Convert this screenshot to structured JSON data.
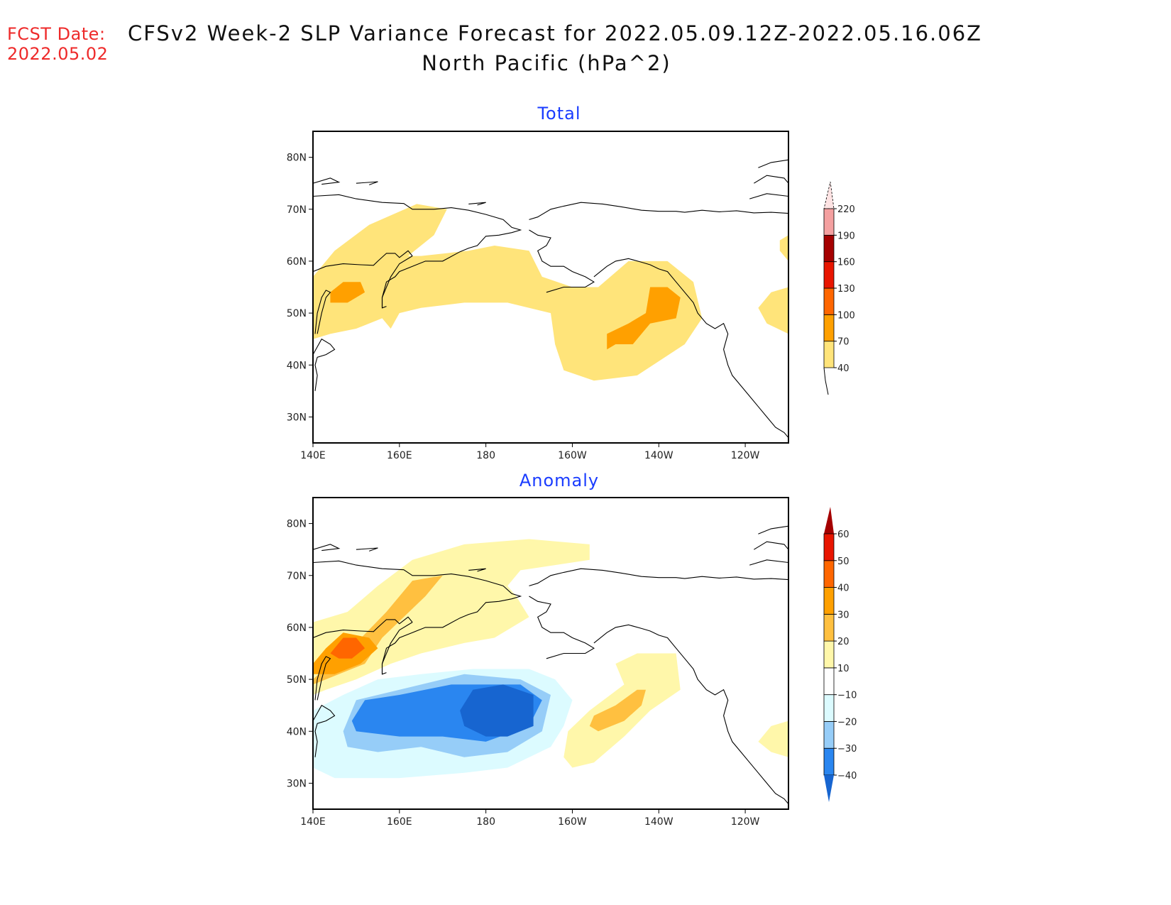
{
  "header": {
    "fcst_label": "FCST Date:",
    "fcst_date": "2022.05.02",
    "title_line1": "CFSv2 Week-2 SLP Variance Forecast for 2022.05.09.12Z-2022.05.16.06Z",
    "title_line2": "North Pacific (hPa^2)"
  },
  "chart_data": [
    {
      "type": "heatmap",
      "title": "Total",
      "projection": "lat-lon",
      "xlabel": "",
      "ylabel": "",
      "lon_range": [
        140,
        250
      ],
      "lat_range": [
        25,
        85
      ],
      "xticks": [
        {
          "lon": 140,
          "label": "140E"
        },
        {
          "lon": 160,
          "label": "160E"
        },
        {
          "lon": 180,
          "label": "180"
        },
        {
          "lon": 200,
          "label": "160W"
        },
        {
          "lon": 220,
          "label": "140W"
        },
        {
          "lon": 240,
          "label": "120W"
        }
      ],
      "yticks": [
        {
          "lat": 30,
          "label": "30N"
        },
        {
          "lat": 40,
          "label": "40N"
        },
        {
          "lat": 50,
          "label": "50N"
        },
        {
          "lat": 60,
          "label": "60N"
        },
        {
          "lat": 70,
          "label": "70N"
        },
        {
          "lat": 80,
          "label": "80N"
        }
      ],
      "colorbar": {
        "levels": [
          40,
          70,
          100,
          130,
          160,
          190,
          220
        ],
        "labels": [
          "40",
          "70",
          "100",
          "130",
          "160",
          "190",
          "220"
        ],
        "colors": [
          "#ffe47a",
          "#ffa000",
          "#ff6600",
          "#e81500",
          "#a50000",
          "#f4a0a0",
          "#fde3e3"
        ],
        "below_color": "#ffffff",
        "extend": "max"
      },
      "regions": [
        {
          "level": "40-70",
          "color": "#ffe47a",
          "lonlat": [
            [
              140,
              57
            ],
            [
              145,
              62
            ],
            [
              153,
              67
            ],
            [
              164,
              71
            ],
            [
              171,
              70
            ],
            [
              168,
              65
            ],
            [
              162,
              61
            ],
            [
              165,
              61
            ],
            [
              176,
              62
            ],
            [
              182,
              63
            ],
            [
              190,
              62
            ],
            [
              193,
              57
            ],
            [
              200,
              55
            ],
            [
              206,
              55
            ],
            [
              213,
              60
            ],
            [
              222,
              60
            ],
            [
              228,
              56
            ],
            [
              230,
              49
            ],
            [
              226,
              44
            ],
            [
              215,
              38
            ],
            [
              205,
              37
            ],
            [
              198,
              39
            ],
            [
              196,
              44
            ],
            [
              195,
              50
            ],
            [
              185,
              52
            ],
            [
              175,
              52
            ],
            [
              165,
              51
            ],
            [
              160,
              50
            ],
            [
              158,
              47
            ],
            [
              156,
              49
            ],
            [
              150,
              47
            ],
            [
              144,
              46
            ],
            [
              140,
              45
            ]
          ]
        },
        {
          "level": "40-70 east",
          "color": "#ffe47a",
          "lonlat": [
            [
              250,
              55
            ],
            [
              246,
              54
            ],
            [
              243,
              51
            ],
            [
              245,
              48
            ],
            [
              250,
              46
            ]
          ]
        },
        {
          "level": "40-70 ne",
          "color": "#ffe47a",
          "lonlat": [
            [
              250,
              65
            ],
            [
              248,
              64
            ],
            [
              248,
              62
            ],
            [
              250,
              60
            ]
          ]
        },
        {
          "level": "70-100",
          "color": "#ffa000",
          "lonlat": [
            [
              144,
              54
            ],
            [
              147,
              56
            ],
            [
              151,
              56
            ],
            [
              152,
              54
            ],
            [
              148,
              52
            ],
            [
              144,
              52
            ]
          ]
        },
        {
          "level": "70-100",
          "color": "#ffa000",
          "lonlat": [
            [
              208,
              43
            ],
            [
              208,
              46
            ],
            [
              213,
              48
            ],
            [
              217,
              50
            ],
            [
              218,
              55
            ],
            [
              222,
              55
            ],
            [
              225,
              53
            ],
            [
              224,
              49
            ],
            [
              218,
              48
            ],
            [
              214,
              44
            ],
            [
              210,
              44
            ]
          ]
        }
      ]
    },
    {
      "type": "heatmap",
      "title": "Anomaly",
      "projection": "lat-lon",
      "xlabel": "",
      "ylabel": "",
      "lon_range": [
        140,
        250
      ],
      "lat_range": [
        25,
        85
      ],
      "xticks": [
        {
          "lon": 140,
          "label": "140E"
        },
        {
          "lon": 160,
          "label": "160E"
        },
        {
          "lon": 180,
          "label": "180"
        },
        {
          "lon": 200,
          "label": "160W"
        },
        {
          "lon": 220,
          "label": "140W"
        },
        {
          "lon": 240,
          "label": "120W"
        }
      ],
      "yticks": [
        {
          "lat": 30,
          "label": "30N"
        },
        {
          "lat": 40,
          "label": "40N"
        },
        {
          "lat": 50,
          "label": "50N"
        },
        {
          "lat": 60,
          "label": "60N"
        },
        {
          "lat": 70,
          "label": "70N"
        },
        {
          "lat": 80,
          "label": "80N"
        }
      ],
      "colorbar": {
        "levels": [
          -40,
          -30,
          -20,
          -10,
          10,
          20,
          30,
          40,
          50,
          60
        ],
        "labels": [
          "-40",
          "-30",
          "-20",
          "-10",
          "10",
          "20",
          "30",
          "40",
          "50",
          "60"
        ],
        "colors": [
          "#1765d0",
          "#2a86f0",
          "#96cdf8",
          "#dcfbff",
          "#ffffff",
          "#fff7aa",
          "#ffc040",
          "#ffa000",
          "#ff6600",
          "#e81500",
          "#a50000"
        ],
        "extend": "both"
      },
      "regions": [
        {
          "level": "10-20",
          "color": "#fff7aa",
          "lonlat": [
            [
              140,
              61
            ],
            [
              148,
              63
            ],
            [
              155,
              68
            ],
            [
              163,
              73
            ],
            [
              175,
              76
            ],
            [
              190,
              77
            ],
            [
              204,
              76
            ],
            [
              204,
              73
            ],
            [
              196,
              72
            ],
            [
              188,
              71
            ],
            [
              185,
              68
            ],
            [
              187,
              66
            ],
            [
              190,
              62
            ],
            [
              182,
              58
            ],
            [
              175,
              57
            ],
            [
              165,
              55
            ],
            [
              158,
              53
            ],
            [
              150,
              50
            ],
            [
              143,
              48
            ],
            [
              140,
              47
            ]
          ]
        },
        {
          "level": "10-20 east",
          "color": "#fff7aa",
          "lonlat": [
            [
              198,
              35
            ],
            [
              199,
              40
            ],
            [
              204,
              44
            ],
            [
              212,
              49
            ],
            [
              210,
              53
            ],
            [
              215,
              55
            ],
            [
              224,
              55
            ],
            [
              225,
              48
            ],
            [
              218,
              44
            ],
            [
              212,
              39
            ],
            [
              205,
              34
            ],
            [
              200,
              33
            ]
          ]
        },
        {
          "level": "10-20 e2",
          "color": "#fff7aa",
          "lonlat": [
            [
              250,
              42
            ],
            [
              246,
              41
            ],
            [
              243,
              38
            ],
            [
              246,
              36
            ],
            [
              250,
              35
            ]
          ]
        },
        {
          "level": "20-30",
          "color": "#ffc040",
          "lonlat": [
            [
              140,
              50
            ],
            [
              144,
              53
            ],
            [
              150,
              57
            ],
            [
              157,
              63
            ],
            [
              163,
              69
            ],
            [
              170,
              70
            ],
            [
              166,
              66
            ],
            [
              161,
              62
            ],
            [
              156,
              58
            ],
            [
              152,
              53
            ],
            [
              146,
              51
            ],
            [
              140,
              49
            ]
          ]
        },
        {
          "level": "20-30",
          "color": "#ffc040",
          "lonlat": [
            [
              204,
              41
            ],
            [
              205,
              43
            ],
            [
              210,
              45
            ],
            [
              215,
              48
            ],
            [
              217,
              48
            ],
            [
              216,
              45
            ],
            [
              212,
              42
            ],
            [
              206,
              40
            ]
          ]
        },
        {
          "level": "30-40",
          "color": "#ffa000",
          "lonlat": [
            [
              140,
              53
            ],
            [
              143,
              56
            ],
            [
              147,
              59
            ],
            [
              153,
              58
            ],
            [
              155,
              56
            ],
            [
              151,
              53
            ],
            [
              145,
              51
            ],
            [
              140,
              51
            ]
          ]
        },
        {
          "level": "40-50",
          "color": "#ff6600",
          "lonlat": [
            [
              144,
              55
            ],
            [
              147,
              58
            ],
            [
              150,
              58
            ],
            [
              152,
              56
            ],
            [
              149,
              54
            ],
            [
              146,
              54
            ]
          ]
        },
        {
          "level": "-10--20",
          "color": "#dcfbff",
          "lonlat": [
            [
              140,
              44
            ],
            [
              147,
              47
            ],
            [
              155,
              50
            ],
            [
              165,
              51
            ],
            [
              177,
              52
            ],
            [
              190,
              52
            ],
            [
              196,
              50
            ],
            [
              200,
              46
            ],
            [
              198,
              41
            ],
            [
              195,
              37
            ],
            [
              185,
              33
            ],
            [
              175,
              32
            ],
            [
              160,
              31
            ],
            [
              145,
              31
            ],
            [
              140,
              33
            ]
          ]
        },
        {
          "level": "-20--30",
          "color": "#96cdf8",
          "lonlat": [
            [
              147,
              40
            ],
            [
              150,
              46
            ],
            [
              160,
              48
            ],
            [
              175,
              51
            ],
            [
              188,
              50
            ],
            [
              195,
              47
            ],
            [
              193,
              40
            ],
            [
              185,
              36
            ],
            [
              175,
              35
            ],
            [
              165,
              37
            ],
            [
              155,
              36
            ],
            [
              148,
              37
            ]
          ]
        },
        {
          "level": "-30--40",
          "color": "#2a86f0",
          "lonlat": [
            [
              149,
              42
            ],
            [
              152,
              46
            ],
            [
              160,
              47
            ],
            [
              172,
              49
            ],
            [
              188,
              49
            ],
            [
              193,
              46
            ],
            [
              190,
              41
            ],
            [
              180,
              38
            ],
            [
              170,
              39
            ],
            [
              160,
              39
            ],
            [
              150,
              40
            ]
          ]
        },
        {
          "level": "<-40",
          "color": "#1765d0",
          "lonlat": [
            [
              174,
              44
            ],
            [
              177,
              48
            ],
            [
              184,
              49
            ],
            [
              191,
              47
            ],
            [
              191,
              41
            ],
            [
              185,
              39
            ],
            [
              180,
              39
            ],
            [
              175,
              41
            ]
          ]
        }
      ]
    }
  ]
}
